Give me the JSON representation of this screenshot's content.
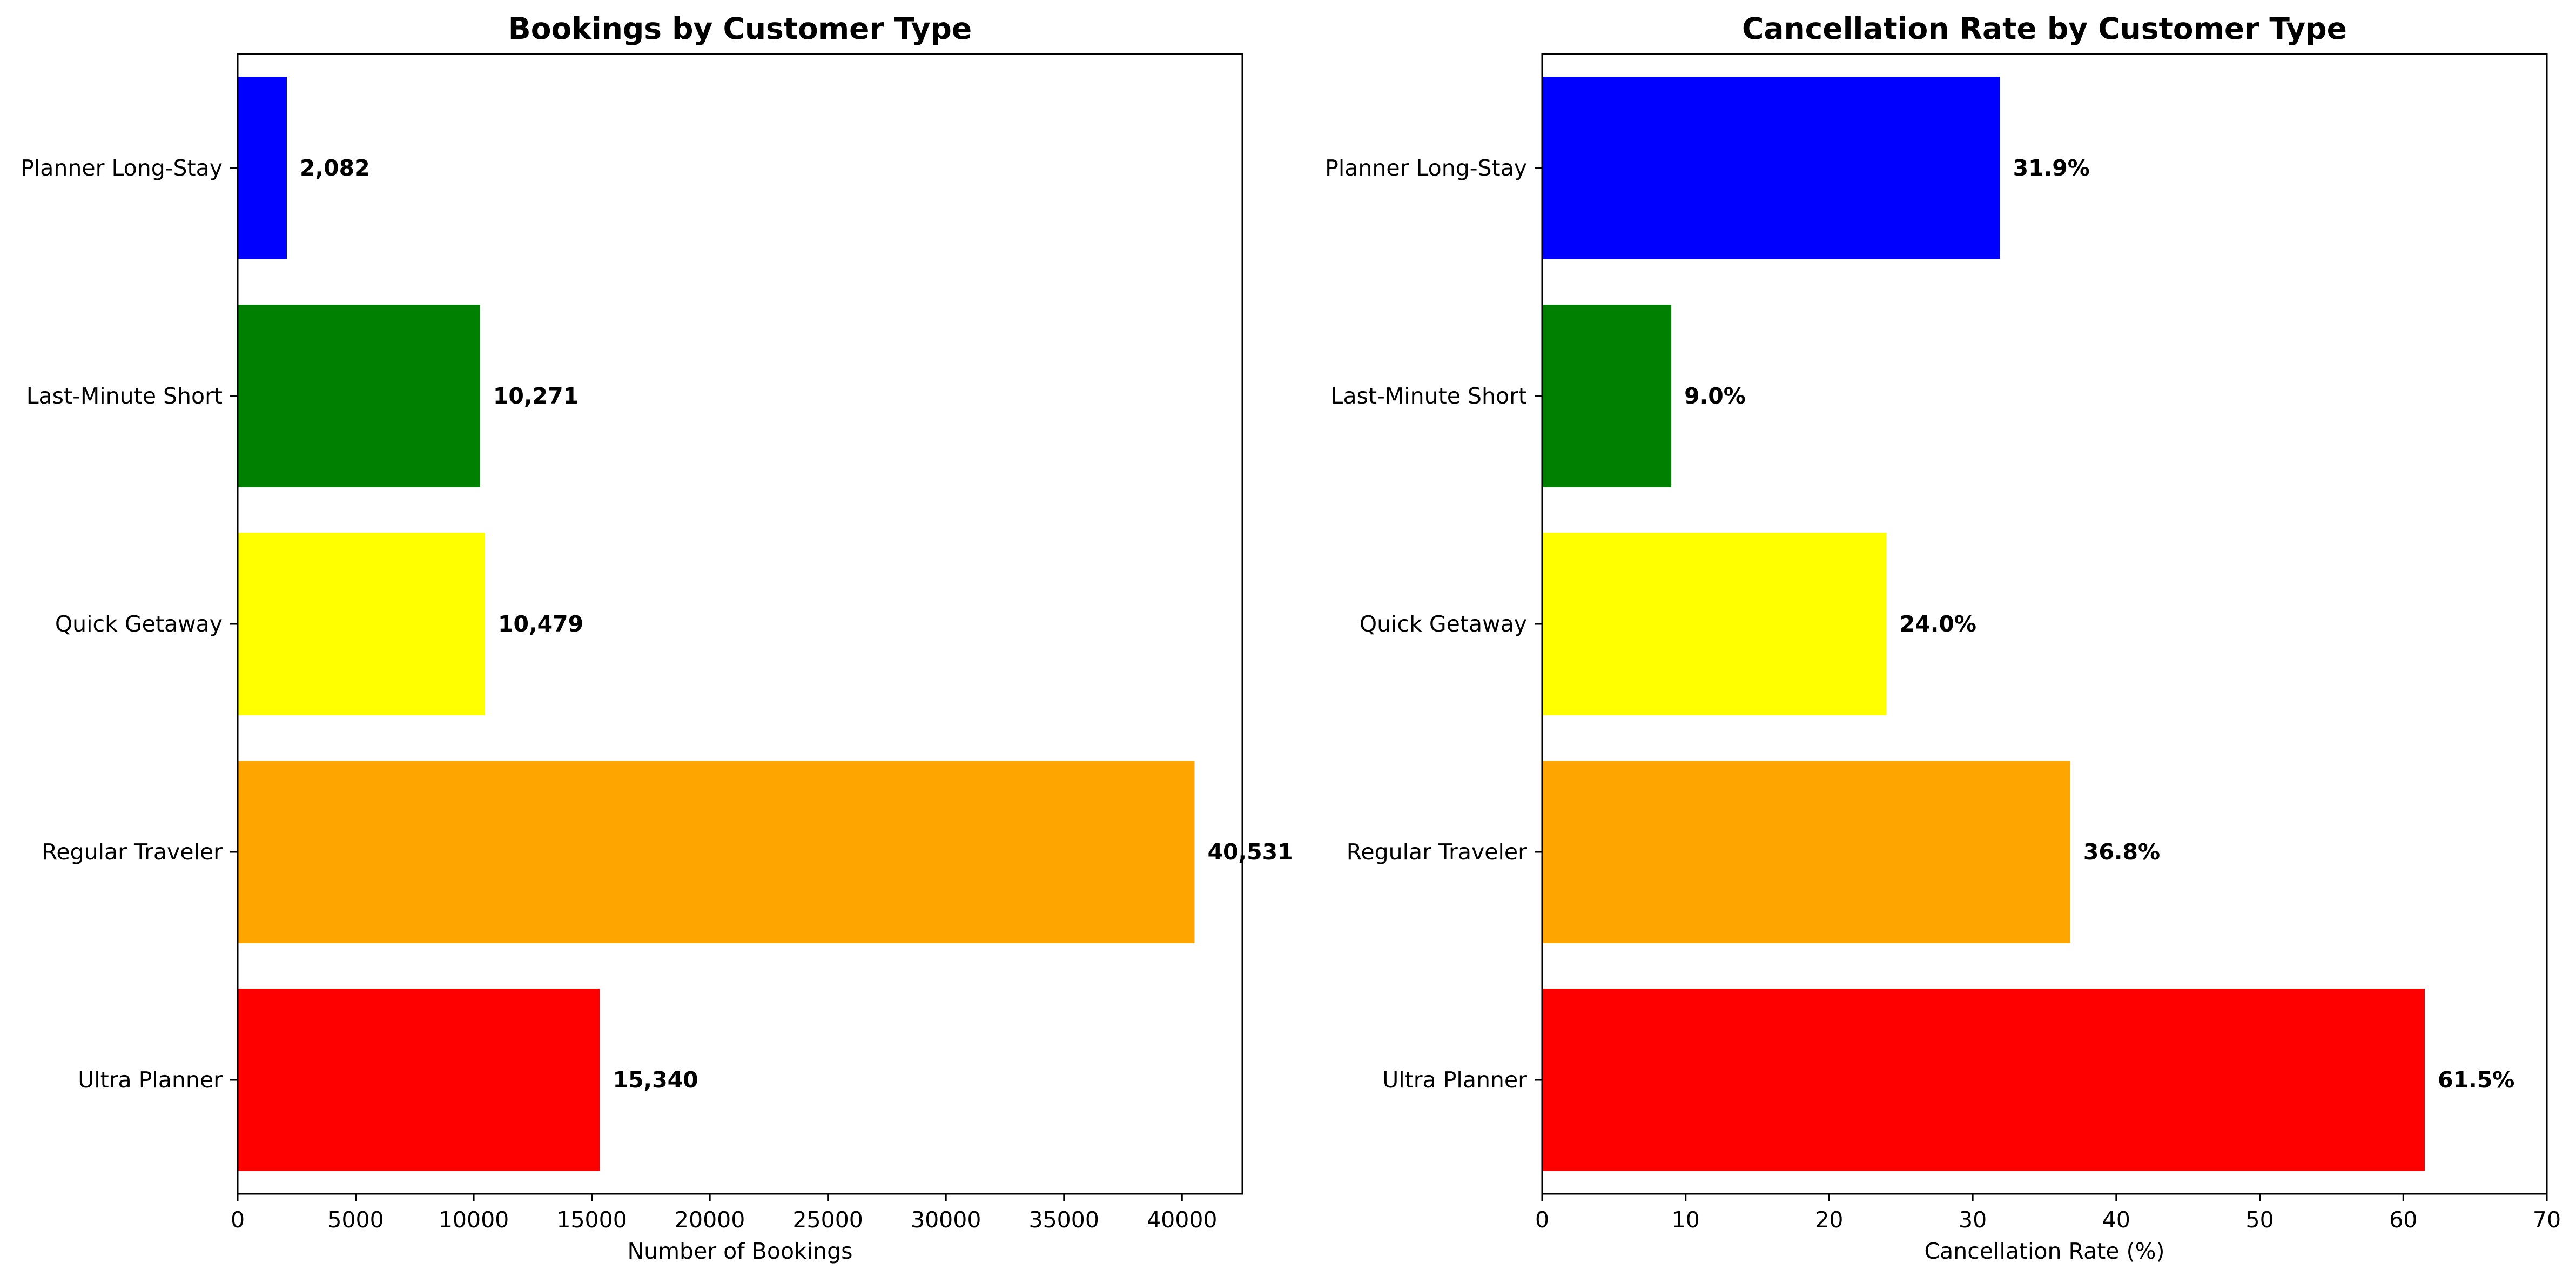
{
  "chart_data": [
    {
      "type": "bar",
      "orientation": "horizontal",
      "title": "Bookings by Customer Type",
      "xlabel": "Number of Bookings",
      "ylabel": "",
      "categories": [
        "Planner Long-Stay",
        "Last-Minute Short",
        "Quick Getaway",
        "Regular Traveler",
        "Ultra Planner"
      ],
      "values": [
        2082,
        10271,
        10479,
        40531,
        15340
      ],
      "value_labels": [
        "2,082",
        "10,271",
        "10,479",
        "40,531",
        "15,340"
      ],
      "colors": [
        "#0000ff",
        "#008000",
        "#ffff00",
        "#ffa500",
        "#ff0000"
      ],
      "xlim": [
        0,
        42556
      ],
      "xticks": [
        0,
        5000,
        10000,
        15000,
        20000,
        25000,
        30000,
        35000,
        40000
      ],
      "xtick_labels": [
        "0",
        "5000",
        "10000",
        "15000",
        "20000",
        "25000",
        "30000",
        "35000",
        "40000"
      ],
      "grid": false,
      "legend": "none"
    },
    {
      "type": "bar",
      "orientation": "horizontal",
      "title": "Cancellation Rate by Customer Type",
      "xlabel": "Cancellation Rate (%)",
      "ylabel": "",
      "categories": [
        "Planner Long-Stay",
        "Last-Minute Short",
        "Quick Getaway",
        "Regular Traveler",
        "Ultra Planner"
      ],
      "values": [
        31.9,
        9.0,
        24.0,
        36.8,
        61.5
      ],
      "value_labels": [
        "31.9%",
        "9.0%",
        "24.0%",
        "36.8%",
        "61.5%"
      ],
      "colors": [
        "#0000ff",
        "#008000",
        "#ffff00",
        "#ffa500",
        "#ff0000"
      ],
      "xlim": [
        0,
        70
      ],
      "xticks": [
        0,
        10,
        20,
        30,
        40,
        50,
        60,
        70
      ],
      "xtick_labels": [
        "0",
        "10",
        "20",
        "30",
        "40",
        "50",
        "60",
        "70"
      ],
      "grid": false,
      "legend": "none"
    }
  ]
}
